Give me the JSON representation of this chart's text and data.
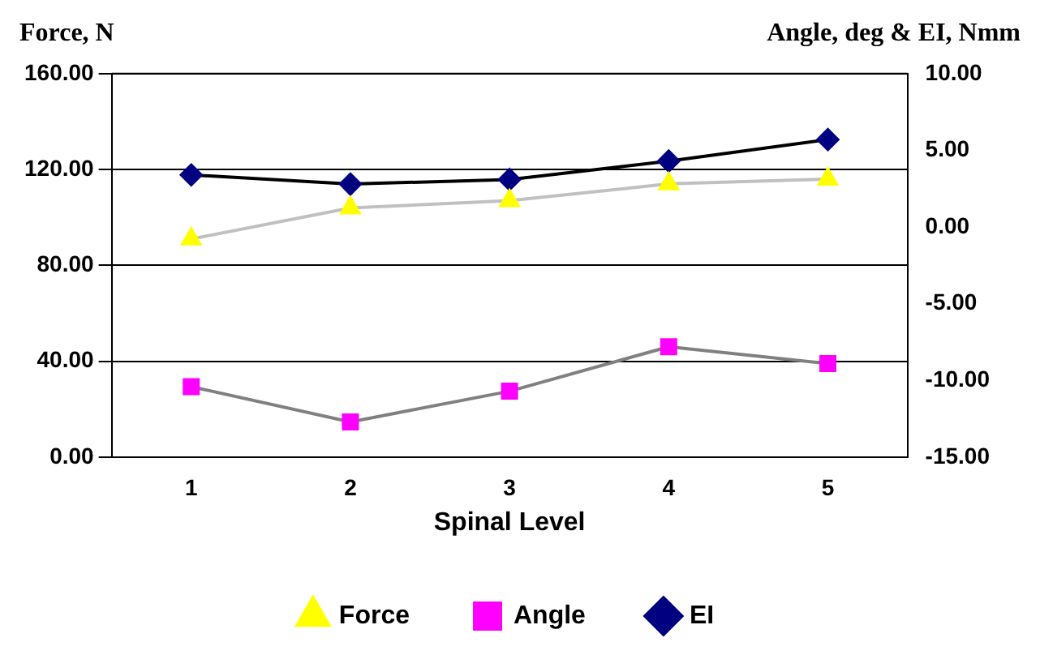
{
  "chart_data": {
    "type": "line",
    "xlabel": "Spinal Level",
    "ylabel": "Force, N",
    "y2label": "Angle, deg & EI, Nmm",
    "categories": [
      "1",
      "2",
      "3",
      "4",
      "5"
    ],
    "series": [
      {
        "name": "Force",
        "color": "#ffff00",
        "marker": "triangle",
        "values": [
          91,
          104,
          107,
          114,
          116
        ]
      },
      {
        "name": "Angle",
        "color": "#ff00ff",
        "marker": "square",
        "axis": "y2",
        "values": [
          -10.4,
          -12.7,
          -10.7,
          -7.8,
          -8.9
        ]
      },
      {
        "name": "EI",
        "color": "#000080",
        "marker": "diamond",
        "axis": "y2",
        "values": [
          3.4,
          2.8,
          3.1,
          4.3,
          5.7
        ]
      }
    ],
    "ylim": [
      0,
      160
    ],
    "yticks": [
      {
        "value": 0,
        "label": "0.00"
      },
      {
        "value": 40,
        "label": "40.00"
      },
      {
        "value": 80,
        "label": "80.00"
      },
      {
        "value": 120,
        "label": "120.00"
      },
      {
        "value": 160,
        "label": "160.00"
      }
    ],
    "y2lim": [
      -15,
      10
    ],
    "y2ticks": [
      {
        "value": -15,
        "label": "-15.00"
      },
      {
        "value": -10,
        "label": "-10.00"
      },
      {
        "value": -5,
        "label": "-5.00"
      },
      {
        "value": 0,
        "label": "0.00"
      },
      {
        "value": 5,
        "label": "5.00"
      },
      {
        "value": 10,
        "label": "10.00"
      }
    ],
    "grid": "y",
    "legend": "bottom",
    "line_style": "solid"
  }
}
